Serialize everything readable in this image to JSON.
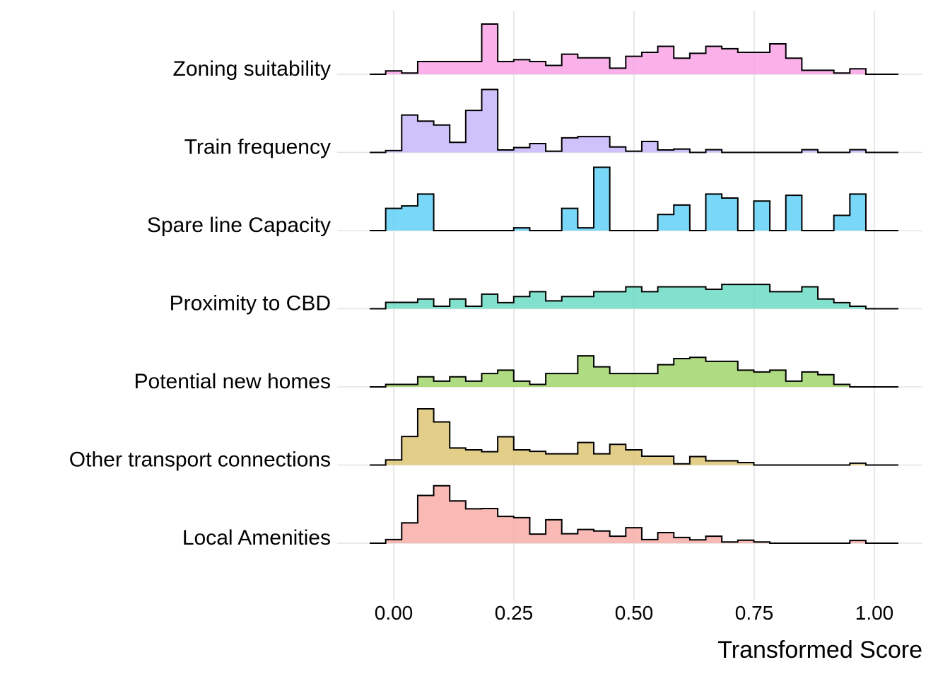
{
  "chart_data": {
    "type": "ridgeline-histogram",
    "xlabel": "Transformed Score",
    "ylabel": "",
    "xlim": [
      -0.05,
      1.05
    ],
    "x_ticks": [
      0.0,
      0.25,
      0.5,
      0.75,
      1.0
    ],
    "x_tick_labels": [
      "0.00",
      "0.25",
      "0.50",
      "0.75",
      "1.00"
    ],
    "grid": true,
    "legend": "none",
    "bins": {
      "count": 31,
      "start": -0.0167,
      "width": 0.0333
    },
    "series": [
      {
        "name": "Zoning suitability",
        "color": "#f99fe4",
        "counts": [
          0.11,
          0.04,
          0.42,
          0.42,
          0.42,
          0.42,
          1.65,
          0.42,
          0.48,
          0.42,
          0.29,
          0.66,
          0.54,
          0.54,
          0.2,
          0.59,
          0.72,
          0.92,
          0.53,
          0.69,
          0.92,
          0.84,
          0.72,
          0.72,
          1.0,
          0.53,
          0.13,
          0.13,
          0.04,
          0.18,
          0.0
        ]
      },
      {
        "name": "Train frequency",
        "color": "#c4b4fa",
        "counts": [
          0.06,
          1.23,
          1.03,
          0.9,
          0.33,
          1.38,
          2.07,
          0.08,
          0.16,
          0.29,
          0.04,
          0.48,
          0.52,
          0.52,
          0.18,
          0.04,
          0.36,
          0.08,
          0.11,
          0.0,
          0.09,
          0.0,
          0.0,
          0.0,
          0.0,
          0.0,
          0.09,
          0.0,
          0.0,
          0.09,
          0.0
        ]
      },
      {
        "name": "Spare line Capacity",
        "color": "#5bcff5",
        "counts": [
          0.73,
          0.81,
          1.2,
          0.0,
          0.0,
          0.0,
          0.0,
          0.0,
          0.09,
          0.0,
          0.0,
          0.73,
          0.09,
          2.08,
          0.0,
          0.0,
          0.0,
          0.53,
          0.84,
          0.0,
          1.2,
          1.07,
          0.0,
          0.97,
          0.0,
          1.16,
          0.0,
          0.0,
          0.5,
          1.2,
          0.0
        ]
      },
      {
        "name": "Proximity to CBD",
        "color": "#66dbc2",
        "counts": [
          0.21,
          0.21,
          0.32,
          0.08,
          0.32,
          0.08,
          0.48,
          0.2,
          0.4,
          0.56,
          0.26,
          0.4,
          0.4,
          0.56,
          0.56,
          0.72,
          0.56,
          0.72,
          0.72,
          0.72,
          0.64,
          0.8,
          0.8,
          0.8,
          0.56,
          0.56,
          0.72,
          0.32,
          0.2,
          0.08,
          0.0
        ]
      },
      {
        "name": "Potential new homes",
        "color": "#9ed467",
        "counts": [
          0.08,
          0.08,
          0.33,
          0.19,
          0.33,
          0.19,
          0.44,
          0.55,
          0.19,
          0.08,
          0.44,
          0.44,
          1.02,
          0.66,
          0.44,
          0.44,
          0.44,
          0.73,
          0.93,
          0.97,
          0.84,
          0.84,
          0.55,
          0.49,
          0.55,
          0.19,
          0.49,
          0.4,
          0.08,
          0.0,
          0.0
        ]
      },
      {
        "name": "Other transport connections",
        "color": "#ddc36f",
        "counts": [
          0.17,
          0.94,
          1.85,
          1.42,
          0.56,
          0.5,
          0.44,
          0.93,
          0.5,
          0.45,
          0.37,
          0.37,
          0.74,
          0.37,
          0.68,
          0.5,
          0.29,
          0.29,
          0.04,
          0.28,
          0.14,
          0.14,
          0.08,
          0.0,
          0.0,
          0.0,
          0.0,
          0.0,
          0.0,
          0.06,
          0.0
        ]
      },
      {
        "name": "Local Amenities",
        "color": "#f8aaa3",
        "counts": [
          0.12,
          0.67,
          1.57,
          1.89,
          1.39,
          1.13,
          1.14,
          0.88,
          0.84,
          0.3,
          0.77,
          0.31,
          0.45,
          0.4,
          0.23,
          0.51,
          0.12,
          0.35,
          0.19,
          0.11,
          0.23,
          0.04,
          0.1,
          0.04,
          0.0,
          0.0,
          0.0,
          0.0,
          0.0,
          0.09,
          0.0
        ]
      }
    ]
  }
}
